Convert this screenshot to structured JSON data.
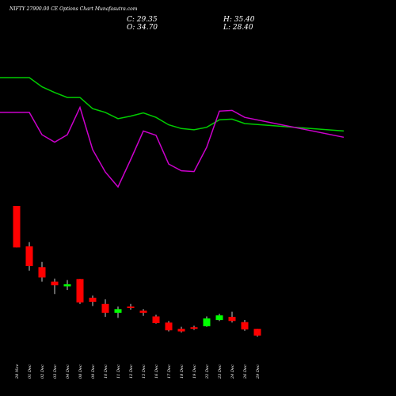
{
  "chart_data": {
    "type": "candlestick",
    "title": "NIFTY 27900.00 CE Options Chart Munafasutra.com",
    "ohlc_readout": {
      "close": "C: 29.35",
      "open": "O: 34.70",
      "high": "H: 35.40",
      "low": "L: 28.40"
    },
    "categories": [
      "28 Nov",
      "01 Dec",
      "02 Dec",
      "03 Dec",
      "04 Dec",
      "08 Dec",
      "09 Dec",
      "10 Dec",
      "11 Dec",
      "12 Dec",
      "15 Dec",
      "16 Dec",
      "17 Dec",
      "18 Dec",
      "19 Dec",
      "22 Dec",
      "23 Dec",
      "24 Dec",
      "26 Dec",
      "29 Dec"
    ],
    "candles": [
      {
        "open": 330,
        "high": 330,
        "low": 250,
        "close": 250
      },
      {
        "open": 252,
        "high": 260,
        "low": 205,
        "close": 214
      },
      {
        "open": 212,
        "high": 222,
        "low": 184,
        "close": 192
      },
      {
        "open": 184,
        "high": 190,
        "low": 160,
        "close": 177
      },
      {
        "open": 175,
        "high": 187,
        "low": 168,
        "close": 179
      },
      {
        "open": 189,
        "high": 189,
        "low": 141,
        "close": 144
      },
      {
        "open": 153,
        "high": 157,
        "low": 137,
        "close": 145
      },
      {
        "open": 141,
        "high": 150,
        "low": 116,
        "close": 124
      },
      {
        "open": 124,
        "high": 136,
        "low": 114,
        "close": 131
      },
      {
        "open": 136,
        "high": 141,
        "low": 130,
        "close": 135
      },
      {
        "open": 128,
        "high": 131,
        "low": 118,
        "close": 124
      },
      {
        "open": 117,
        "high": 120,
        "low": 103,
        "close": 104
      },
      {
        "open": 105,
        "high": 108,
        "low": 88,
        "close": 90
      },
      {
        "open": 93,
        "high": 97,
        "low": 86,
        "close": 88
      },
      {
        "open": 96,
        "high": 99,
        "low": 91,
        "close": 93
      },
      {
        "open": 98,
        "high": 117,
        "low": 97,
        "close": 113
      },
      {
        "open": 110,
        "high": 122,
        "low": 108,
        "close": 119
      },
      {
        "open": 116,
        "high": 126,
        "low": 105,
        "close": 108
      },
      {
        "open": 106,
        "high": 110,
        "low": 89,
        "close": 92
      },
      {
        "open": 93,
        "high": 93,
        "low": 78,
        "close": 80
      }
    ],
    "series": [
      {
        "values": [
          720,
          720,
          683,
          660,
          640,
          640,
          595,
          580,
          555,
          565,
          578,
          560,
          530,
          515,
          510,
          520,
          550,
          553,
          535,
          505
        ]
      },
      {
        "values": [
          580,
          580,
          490,
          460,
          490,
          600,
          430,
          340,
          280,
          390,
          505,
          488,
          372,
          345,
          342,
          440,
          585,
          588,
          560,
          480
        ]
      }
    ],
    "colors": {
      "background": "#000000",
      "text": "#ffffff",
      "candle_up": "#00ff00",
      "candle_down": "#ff0000",
      "wick": "#ffffff",
      "line_1": "#00cc00",
      "line_2": "#cc00cc"
    },
    "grid": false
  }
}
